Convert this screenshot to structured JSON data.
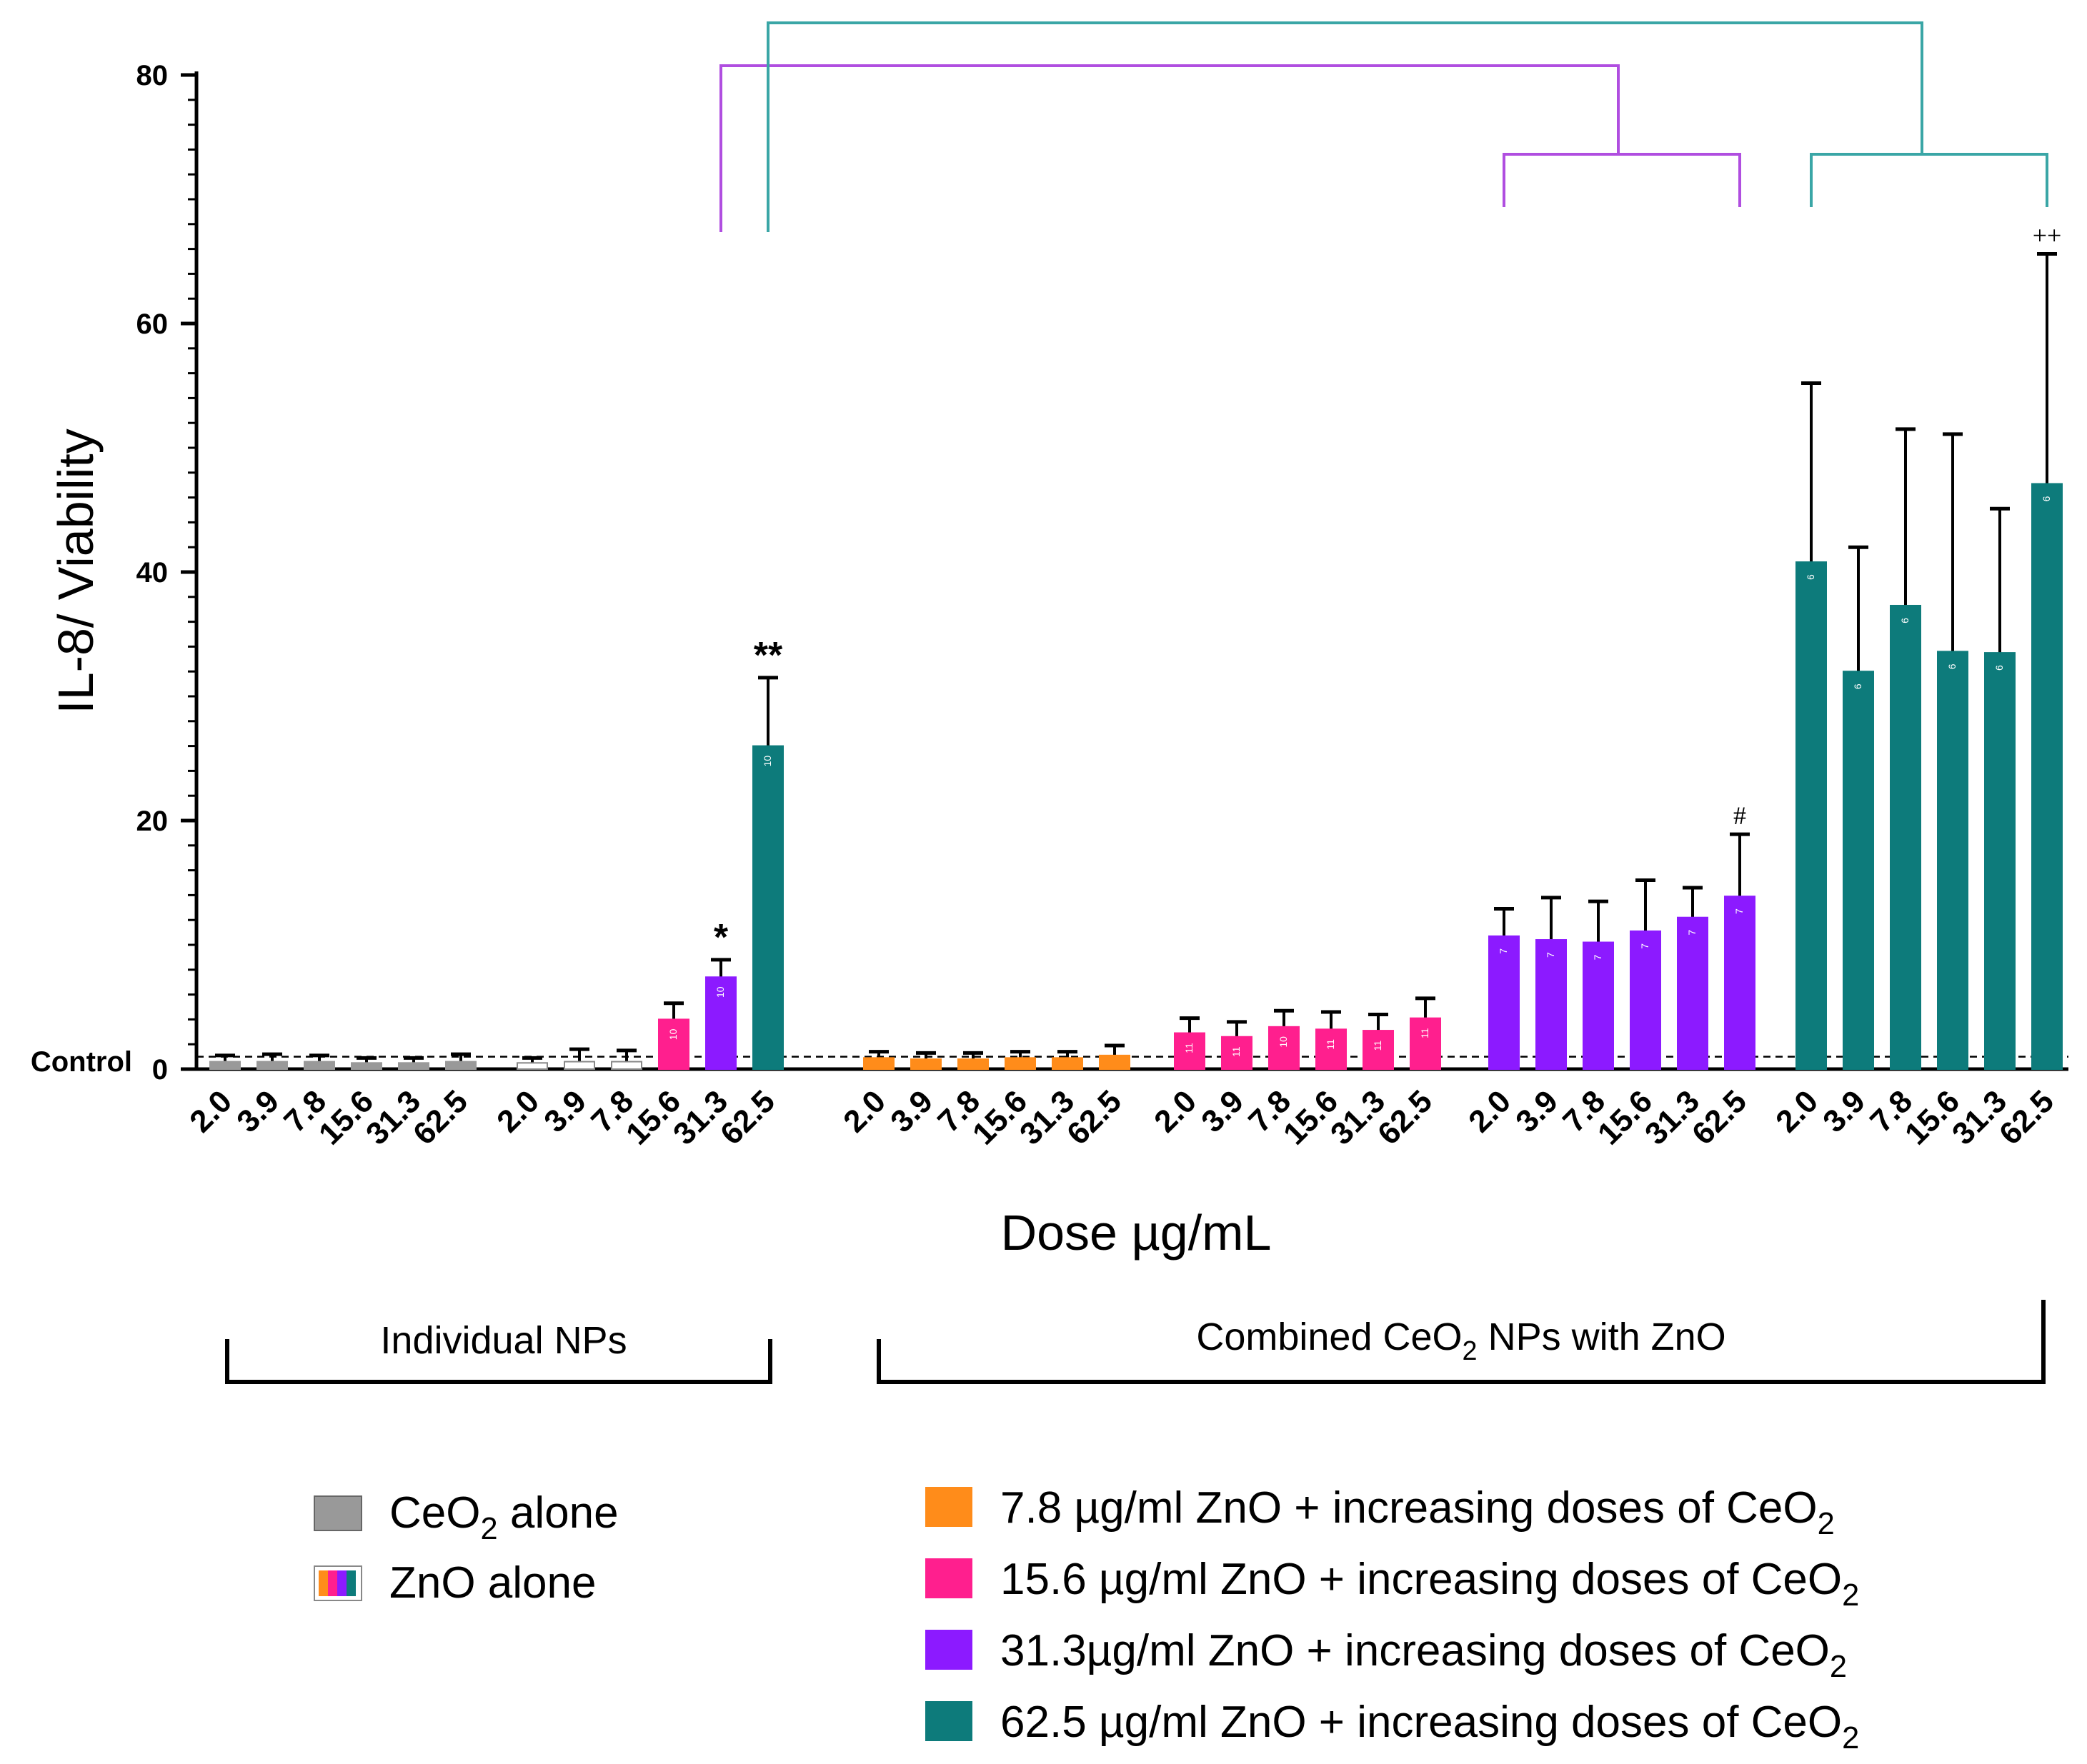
{
  "chart_data": {
    "type": "bar",
    "ylabel": "IL-8/ Viability",
    "xlabel": "Dose µg/mL",
    "ylim": [
      0,
      80
    ],
    "yticks": [
      0,
      20,
      40,
      60,
      80
    ],
    "control_label": "Control",
    "control_value": 1.0,
    "categories": [
      "2.0",
      "3.9",
      "7.8",
      "15.6",
      "31.3",
      "62.5"
    ],
    "groups": [
      {
        "name": "CeO2 alone",
        "colors": [
          "#999999",
          "#999999",
          "#999999",
          "#999999",
          "#999999",
          "#999999"
        ],
        "values": [
          0.6,
          0.6,
          0.6,
          0.5,
          0.5,
          0.6
        ],
        "errors": [
          0.5,
          0.6,
          0.5,
          0.4,
          0.4,
          0.6
        ],
        "n": [
          "",
          "",
          "",
          "",
          "",
          ""
        ]
      },
      {
        "name": "ZnO alone",
        "colors": [
          "#ffffff",
          "#ffffff",
          "#ffffff",
          "#ff1f8e",
          "#8c1aff",
          "#0d7b7b"
        ],
        "values": [
          0.5,
          0.6,
          0.6,
          4.0,
          7.4,
          26.0
        ],
        "errors": [
          0.4,
          1.0,
          0.9,
          1.3,
          1.4,
          5.5
        ],
        "n": [
          "",
          "",
          "",
          "10",
          "10",
          "10"
        ]
      },
      {
        "name": "7.8 µg/ml ZnO + increasing doses of CeO2",
        "colors": [
          "#ff8c1a",
          "#ff8c1a",
          "#ff8c1a",
          "#ff8c1a",
          "#ff8c1a",
          "#ff8c1a"
        ],
        "values": [
          0.9,
          0.8,
          0.8,
          0.9,
          0.9,
          1.1
        ],
        "errors": [
          0.5,
          0.5,
          0.5,
          0.5,
          0.5,
          0.8
        ],
        "n": [
          "",
          "",
          "",
          "",
          "",
          ""
        ]
      },
      {
        "name": "15.6 µg/ml ZnO + increasing doses of CeO2",
        "colors": [
          "#ff1f8e",
          "#ff1f8e",
          "#ff1f8e",
          "#ff1f8e",
          "#ff1f8e",
          "#ff1f8e"
        ],
        "values": [
          2.9,
          2.6,
          3.4,
          3.2,
          3.1,
          4.1
        ],
        "errors": [
          1.2,
          1.2,
          1.3,
          1.4,
          1.3,
          1.6
        ],
        "n": [
          "11",
          "11",
          "10",
          "11",
          "11",
          "11"
        ]
      },
      {
        "name": "31.3µg/ml ZnO + increasing doses of CeO2",
        "colors": [
          "#8c1aff",
          "#8c1aff",
          "#8c1aff",
          "#8c1aff",
          "#8c1aff",
          "#8c1aff"
        ],
        "values": [
          10.7,
          10.4,
          10.2,
          11.1,
          12.2,
          13.9
        ],
        "errors": [
          2.2,
          3.4,
          3.3,
          4.1,
          2.4,
          5.0
        ],
        "n": [
          "7",
          "7",
          "7",
          "7",
          "7",
          "7"
        ]
      },
      {
        "name": "62.5 µg/ml ZnO + increasing doses of CeO2",
        "colors": [
          "#0d7b7b",
          "#0d7b7b",
          "#0d7b7b",
          "#0d7b7b",
          "#0d7b7b",
          "#0d7b7b"
        ],
        "values": [
          40.8,
          32.0,
          37.3,
          33.6,
          33.5,
          47.1
        ],
        "errors": [
          14.4,
          10.0,
          14.2,
          17.5,
          11.6,
          18.5
        ],
        "n": [
          "6",
          "6",
          "6",
          "6",
          "6",
          "6"
        ]
      }
    ],
    "annotations": [
      {
        "group": 1,
        "index": 4,
        "text": "*"
      },
      {
        "group": 1,
        "index": 5,
        "text": "**"
      },
      {
        "group": 4,
        "index": 5,
        "text": "#"
      },
      {
        "group": 5,
        "index": 5,
        "text": "++"
      }
    ],
    "brackets": [
      {
        "label": "Individual NPs",
        "from_group": 0,
        "to_group": 1
      },
      {
        "label_prefix": "Combined CeO",
        "label_sub": "2",
        "label_suffix": " NPs with ZnO",
        "from_group": 2,
        "to_group": 5
      }
    ],
    "comparison_colors": {
      "purple": "#b04ee0",
      "teal": "#3aa6a6"
    },
    "legend_left": [
      {
        "label_prefix": "CeO",
        "label_sub": "2",
        "label_suffix": " alone",
        "color": "#999999"
      },
      {
        "label_prefix": "ZnO alone",
        "label_sub": "",
        "label_suffix": "",
        "color": "multicolor"
      }
    ],
    "legend_right": [
      {
        "label_prefix": "7.8 µg/ml ZnO + increasing doses of CeO",
        "label_sub": "2",
        "color": "#ff8c1a"
      },
      {
        "label_prefix": "15.6 µg/ml ZnO + increasing doses of CeO",
        "label_sub": "2",
        "color": "#ff1f8e"
      },
      {
        "label_prefix": "31.3µg/ml ZnO + increasing doses of CeO",
        "label_sub": "2",
        "color": "#8c1aff"
      },
      {
        "label_prefix": "62.5 µg/ml ZnO + increasing doses of CeO",
        "label_sub": "2",
        "color": "#0d7b7b"
      }
    ]
  }
}
